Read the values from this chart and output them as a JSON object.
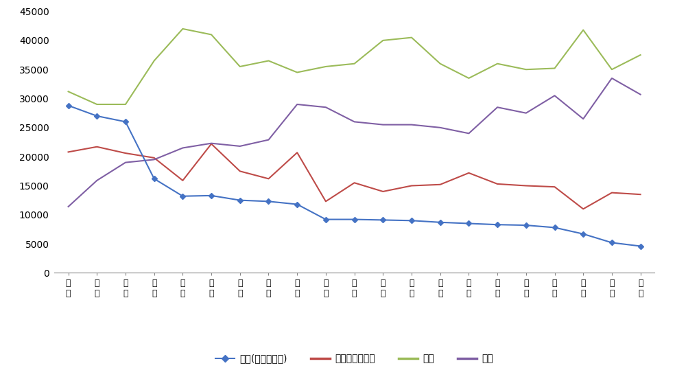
{
  "categories": [
    "深州",
    "广州",
    "珠海",
    "佛山",
    "中山",
    "东莞",
    "惠州",
    "江门",
    "韶关",
    "清远",
    "阳江",
    "湛江",
    "肇庆",
    "河源",
    "梅州",
    "汕头",
    "茂名",
    "潮州",
    "云浮",
    "汕尾",
    "揭阳"
  ],
  "categories_display": [
    "深\n州",
    "广\n州",
    "珠\n海",
    "佛\n山",
    "中\n山",
    "东\n莞",
    "惠\n州",
    "江\n门",
    "韶\n关",
    "清\n远",
    "阳\n江",
    "湛\n江",
    "肇\n庆",
    "河\n源",
    "梅\n州",
    "汕\n头",
    "茂\n名",
    "潮\n州",
    "云\n浮",
    "汕\n尾",
    "揭\n阳"
  ],
  "university": [
    28800,
    27000,
    26000,
    16200,
    13200,
    13300,
    12500,
    12300,
    11800,
    9200,
    9200,
    9100,
    9000,
    8700,
    8500,
    8300,
    8200,
    7800,
    6700,
    5200,
    4600
  ],
  "high_school": [
    20800,
    21700,
    20600,
    19800,
    15900,
    22200,
    17500,
    16200,
    20700,
    12300,
    15500,
    14000,
    15000,
    15200,
    17200,
    15300,
    15000,
    14800,
    11000,
    13800,
    13500
  ],
  "middle_school": [
    31200,
    29000,
    29000,
    36500,
    42000,
    41000,
    35500,
    36500,
    34500,
    35500,
    36000,
    40000,
    40500,
    36000,
    33500,
    36000,
    35000,
    35200,
    41800,
    35000,
    37500
  ],
  "primary_school": [
    11400,
    15900,
    19000,
    19500,
    21500,
    22300,
    21800,
    22900,
    29000,
    28500,
    26000,
    25500,
    25500,
    25000,
    24000,
    28500,
    27500,
    30500,
    26500,
    33500,
    30700
  ],
  "university_color": "#4472C4",
  "high_school_color": "#BE4B48",
  "middle_school_color": "#9BBB59",
  "primary_school_color": "#7F5FA4",
  "ylim": [
    0,
    45000
  ],
  "yticks": [
    0,
    5000,
    10000,
    15000,
    20000,
    25000,
    30000,
    35000,
    40000,
    45000
  ],
  "legend_labels": [
    "大学(大专及以上)",
    "高中（含中专）",
    "初中",
    "小学"
  ],
  "bg_color": "#FFFFFF"
}
